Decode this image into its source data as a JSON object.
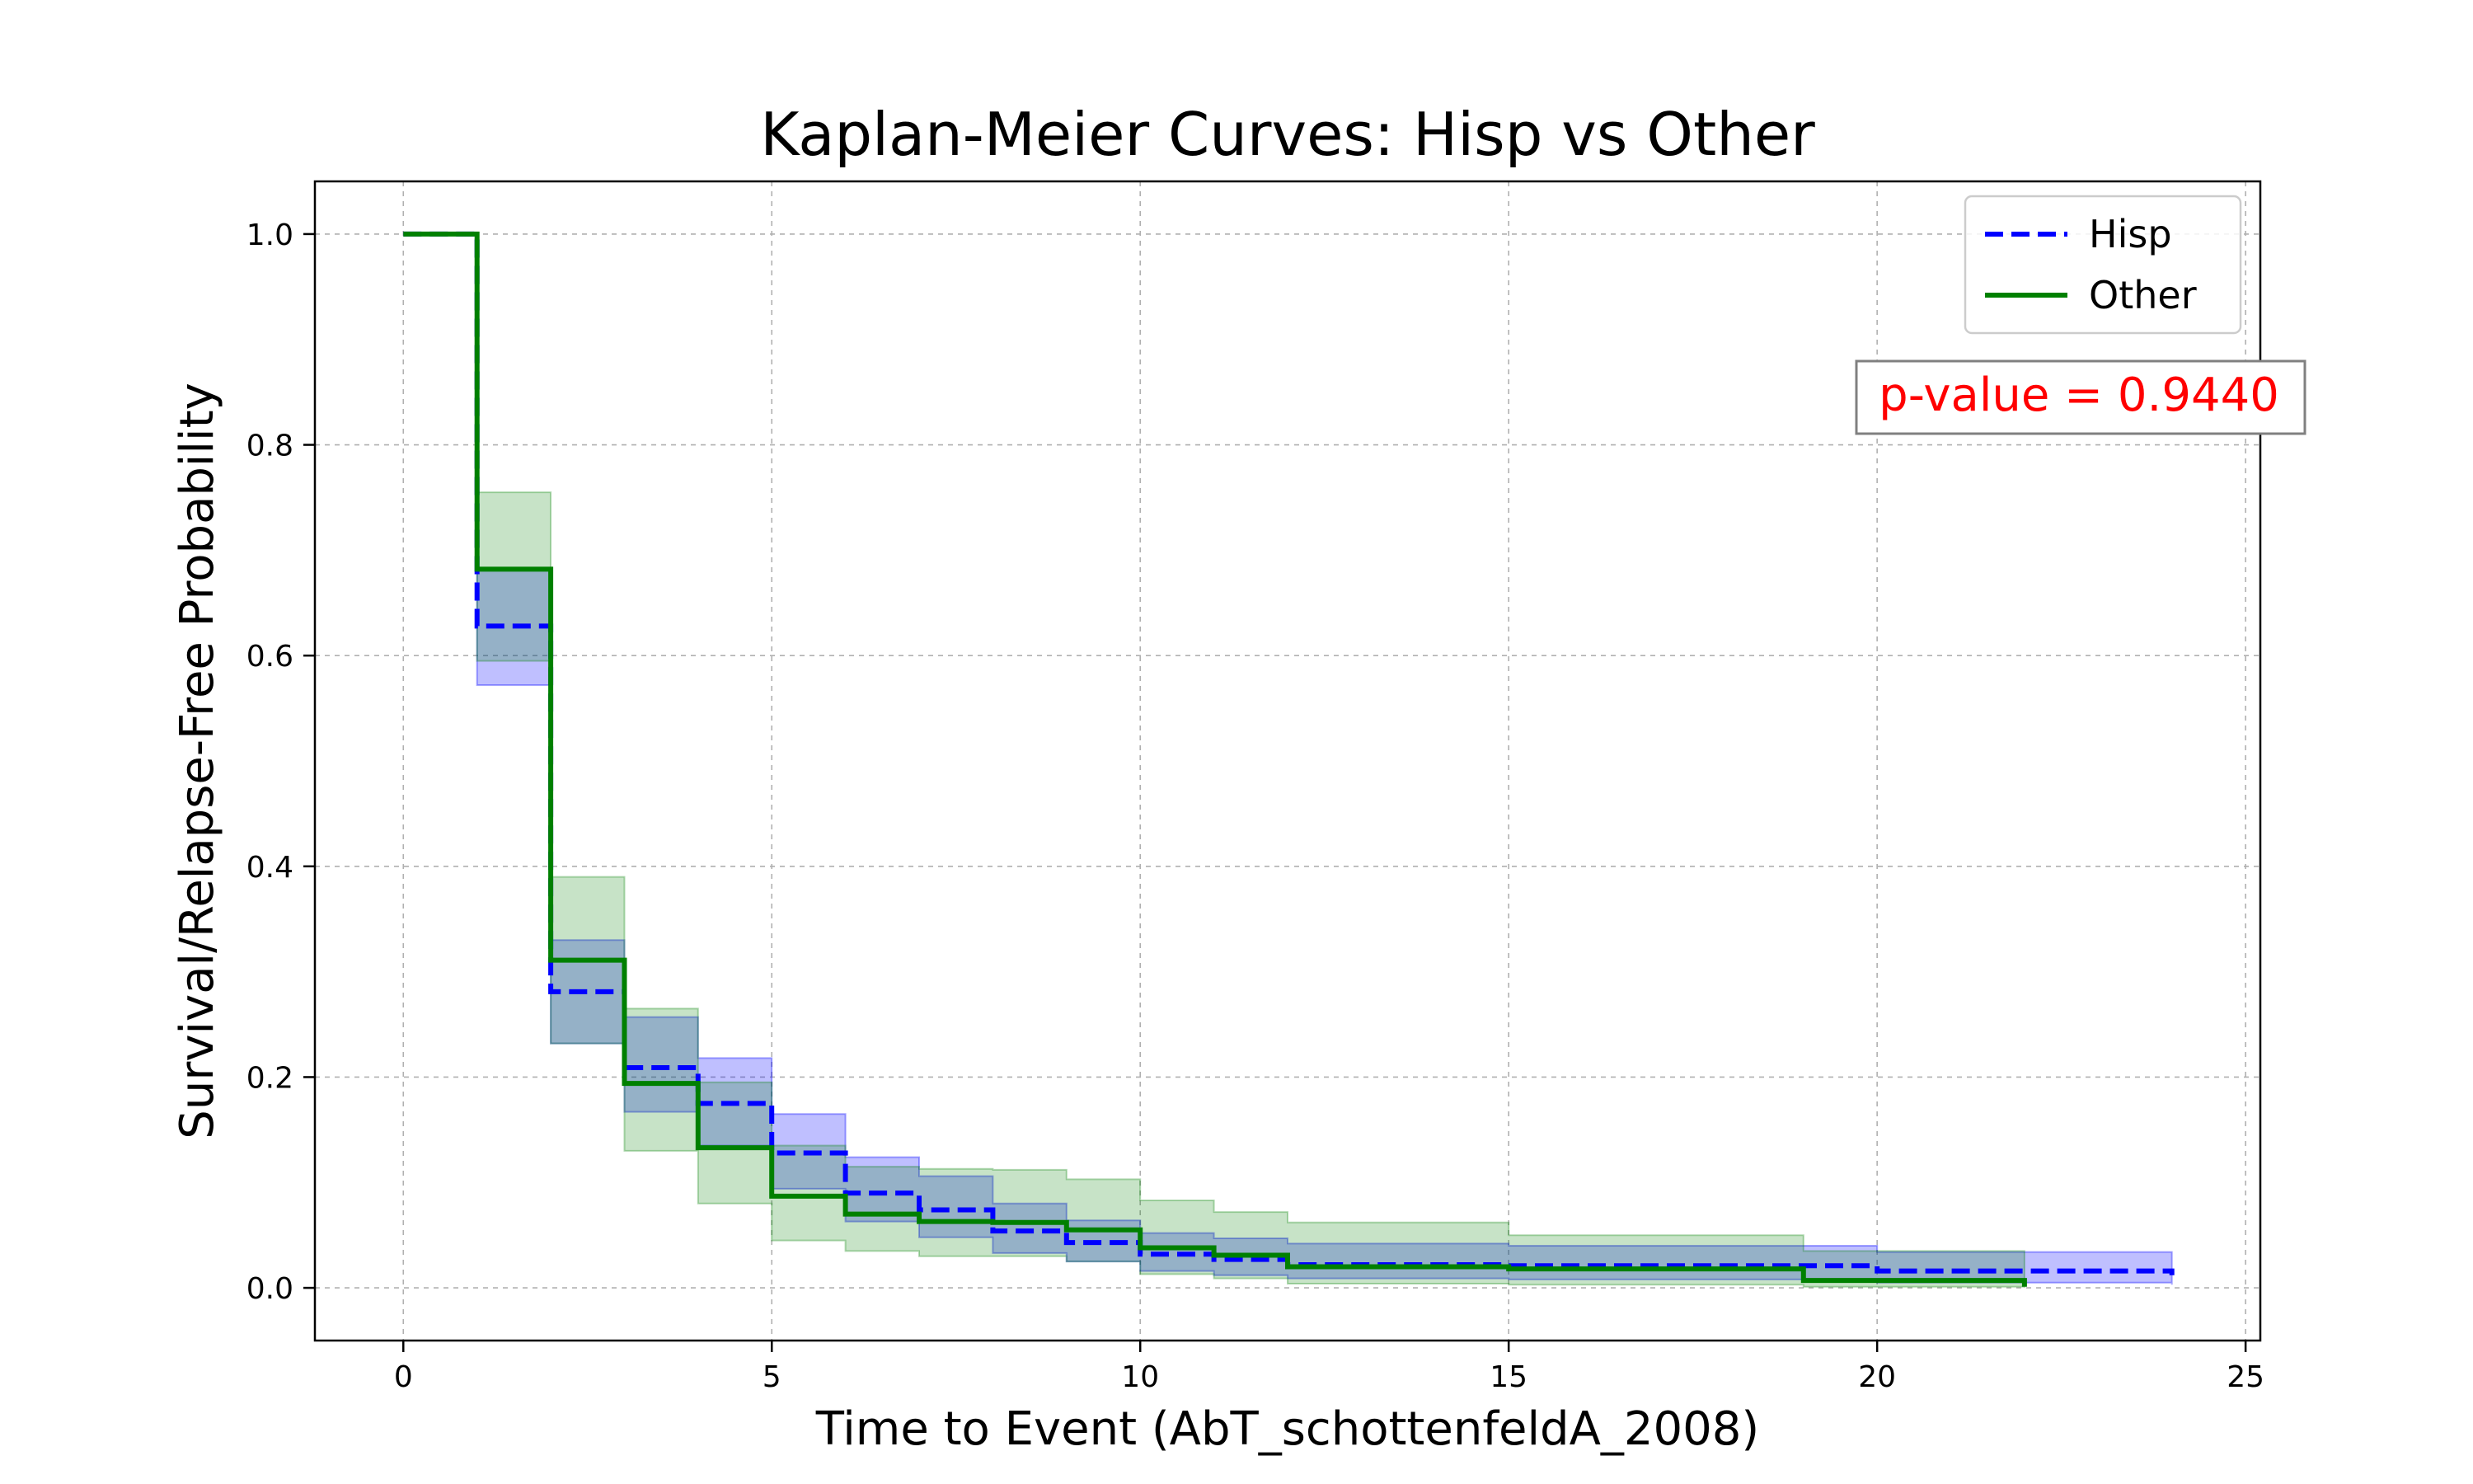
{
  "chart_data": {
    "type": "line",
    "title": "Kaplan-Meier Curves: Hisp vs Other",
    "xlabel": "Time to Event (AbT_schottenfeldA_2008)",
    "ylabel": "Survival/Relapse-Free Probability",
    "xlim": [
      -1.2,
      25.2
    ],
    "ylim": [
      -0.05,
      1.05
    ],
    "xticks": [
      0,
      5,
      10,
      15,
      20,
      25
    ],
    "yticks": [
      0.0,
      0.2,
      0.4,
      0.6,
      0.8,
      1.0
    ],
    "xtick_labels": [
      "0",
      "5",
      "10",
      "15",
      "20",
      "25"
    ],
    "ytick_labels": [
      "0.0",
      "0.2",
      "0.4",
      "0.6",
      "0.8",
      "1.0"
    ],
    "grid": true,
    "legend_position": "top-right",
    "annotation": "p-value = 0.9440",
    "series": [
      {
        "name": "Hisp",
        "color": "#0000ff",
        "line_style": "dashed",
        "step": "post",
        "x": [
          0,
          1,
          2,
          3,
          4,
          5,
          6,
          7,
          8,
          9,
          10,
          11,
          12,
          15,
          20,
          24
        ],
        "y": [
          1.0,
          0.628,
          0.281,
          0.209,
          0.175,
          0.128,
          0.09,
          0.074,
          0.054,
          0.043,
          0.032,
          0.027,
          0.022,
          0.021,
          0.016,
          0.012
        ],
        "ci_lower": [
          1.0,
          0.572,
          0.232,
          0.167,
          0.135,
          0.094,
          0.063,
          0.048,
          0.033,
          0.025,
          0.016,
          0.012,
          0.009,
          0.008,
          0.005,
          0.003
        ],
        "ci_upper": [
          1.0,
          0.682,
          0.33,
          0.257,
          0.218,
          0.165,
          0.124,
          0.106,
          0.08,
          0.064,
          0.052,
          0.047,
          0.042,
          0.04,
          0.034,
          0.034
        ]
      },
      {
        "name": "Other",
        "color": "#008000",
        "line_style": "solid",
        "step": "post",
        "x": [
          0,
          1,
          2,
          3,
          4,
          5,
          6,
          7,
          8,
          9,
          10,
          11,
          12,
          15,
          19,
          22
        ],
        "y": [
          1.0,
          0.682,
          0.311,
          0.194,
          0.133,
          0.087,
          0.07,
          0.063,
          0.062,
          0.055,
          0.038,
          0.031,
          0.02,
          0.018,
          0.007,
          0.001
        ],
        "ci_lower": [
          1.0,
          0.595,
          0.232,
          0.13,
          0.08,
          0.045,
          0.035,
          0.03,
          0.03,
          0.025,
          0.013,
          0.009,
          0.004,
          0.003,
          0.001,
          0.0
        ],
        "ci_upper": [
          1.0,
          0.755,
          0.39,
          0.265,
          0.195,
          0.135,
          0.115,
          0.113,
          0.112,
          0.103,
          0.083,
          0.072,
          0.062,
          0.05,
          0.035,
          0.03
        ]
      }
    ]
  },
  "colors": {
    "annotation_text": "#ff0000",
    "grid": "#b0b0b0",
    "axis": "#000000"
  }
}
